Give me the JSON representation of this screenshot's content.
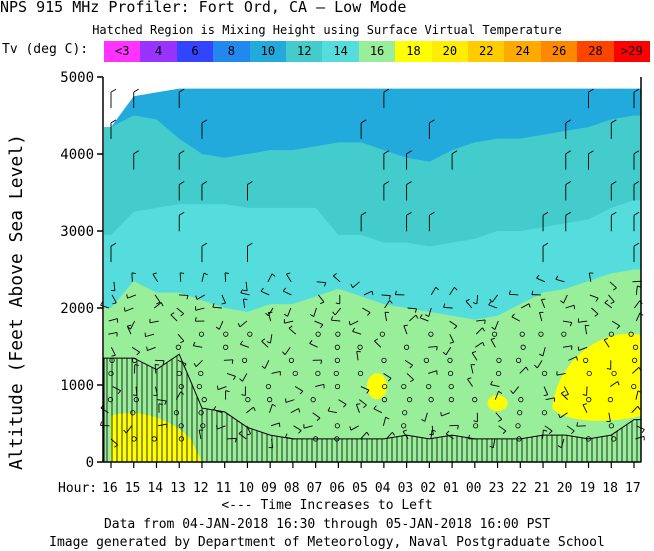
{
  "title": "NPS 915 MHz Profiler:   Fort Ord, CA     — Low Mode",
  "subtitle": "Hatched Region is Mixing Height using Surface Virtual Temperature",
  "legend": {
    "label": "Tv (deg C):",
    "bins": [
      {
        "label": "<3",
        "color": "#ff33ff"
      },
      {
        "label": "4",
        "color": "#9933ff"
      },
      {
        "label": "6",
        "color": "#3344ff"
      },
      {
        "label": "8",
        "color": "#2288ee"
      },
      {
        "label": "10",
        "color": "#22aadd"
      },
      {
        "label": "12",
        "color": "#44cccc"
      },
      {
        "label": "14",
        "color": "#55dddd"
      },
      {
        "label": "16",
        "color": "#99ee99"
      },
      {
        "label": "18",
        "color": "#ffff00"
      },
      {
        "label": "20",
        "color": "#ffee00"
      },
      {
        "label": "22",
        "color": "#ffcc00"
      },
      {
        "label": "24",
        "color": "#ffaa00"
      },
      {
        "label": "26",
        "color": "#ff8800"
      },
      {
        "label": "28",
        "color": "#ff4400"
      },
      {
        "label": ">29",
        "color": "#ff0000"
      }
    ]
  },
  "axes": {
    "ylabel": "Altitude (Feet Above Sea Level)",
    "hour_label": "Hour:",
    "time_note": "<--- Time Increases to Left",
    "data_range": "Data from 04-JAN-2018 16:30 through 05-JAN-2018 16:00 PST",
    "credit": "Image generated by Department of Meteorology, Naval Postgraduate School"
  },
  "chart_data": {
    "type": "heatmap",
    "title": "NPS 915 MHz Profiler:   Fort Ord, CA     — Low Mode",
    "subtitle": "Hatched Region is Mixing Height using Surface Virtual Temperature",
    "ylabel": "Altitude (Feet Above Sea Level)",
    "xlabel": "Hour:",
    "ylim": [
      0,
      5000
    ],
    "yticks": [
      0,
      1000,
      2000,
      3000,
      4000,
      5000
    ],
    "x_direction": "time increases to left",
    "hours": [
      "16",
      "15",
      "14",
      "13",
      "12",
      "11",
      "10",
      "09",
      "08",
      "07",
      "06",
      "05",
      "04",
      "03",
      "02",
      "01",
      "00",
      "23",
      "22",
      "21",
      "20",
      "19",
      "18",
      "17"
    ],
    "layer_boundaries_ft": [
      {
        "between": "12-14",
        "values": [
          4350,
          4750,
          4800,
          4850,
          4850,
          4850,
          4850,
          4850,
          4850,
          4850,
          4850,
          4850,
          4850,
          4850,
          4850,
          4850,
          4850,
          4850,
          4850,
          4850,
          4850,
          4850,
          4850,
          4850
        ]
      },
      {
        "between": "10-12",
        "values": [
          4350,
          4500,
          4450,
          4200,
          4000,
          3950,
          4000,
          4050,
          4050,
          4100,
          4150,
          4150,
          4050,
          3950,
          3900,
          4050,
          4150,
          4200,
          4200,
          4250,
          4300,
          4350,
          4450,
          4500
        ]
      },
      {
        "between": "14-16",
        "values": [
          2950,
          3250,
          3300,
          3350,
          3350,
          3350,
          3300,
          3300,
          3300,
          3300,
          2950,
          2950,
          2850,
          2850,
          2800,
          2850,
          2900,
          3000,
          3000,
          3050,
          3100,
          3150,
          3300,
          3400
        ]
      },
      {
        "between": "16-18",
        "values": [
          2000,
          2350,
          2200,
          2200,
          2100,
          2000,
          1950,
          2050,
          2050,
          2150,
          2250,
          2150,
          2050,
          2000,
          1950,
          1900,
          1850,
          1900,
          2050,
          2200,
          2250,
          2350,
          2450,
          2500
        ]
      },
      {
        "between": "mixing height",
        "values": [
          1350,
          1350,
          1200,
          1400,
          700,
          650,
          450,
          350,
          300,
          300,
          300,
          300,
          300,
          350,
          300,
          350,
          300,
          300,
          300,
          350,
          350,
          300,
          350,
          550
        ]
      }
    ],
    "warm_regions": [
      {
        "label": "18",
        "description": "surface warm layer hours 16-12",
        "max_ft": 600
      },
      {
        "label": "18",
        "description": "warm patch near hour 05",
        "max_ft": 1200
      },
      {
        "label": "18",
        "description": "warm patch near hour 23",
        "max_ft": 900
      },
      {
        "label": "18",
        "description": "warm region hours 20-17",
        "max_ft": 1650
      }
    ]
  }
}
